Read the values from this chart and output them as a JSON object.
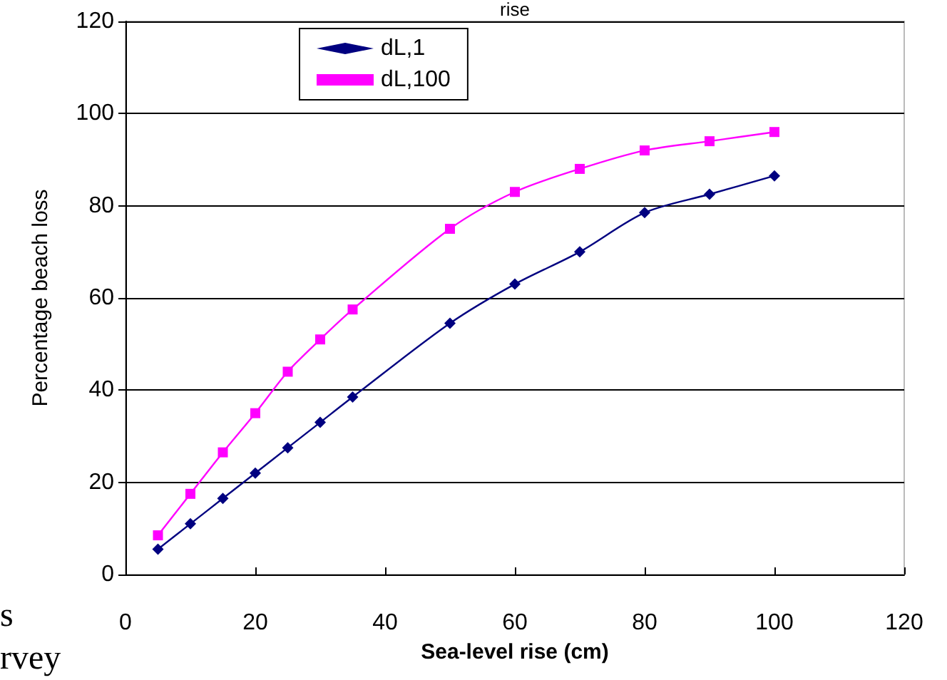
{
  "chart_data": {
    "type": "line",
    "title": "rise",
    "xlabel": "Sea-level rise (cm)",
    "ylabel": "Percentage beach loss",
    "annotations": [
      "s",
      "rvey"
    ],
    "x": [
      5,
      10,
      15,
      20,
      25,
      30,
      35,
      50,
      60,
      70,
      80,
      90,
      100
    ],
    "series": [
      {
        "name": "dL,1",
        "color": "#000080",
        "marker": "diamond",
        "values": [
          5.5,
          11,
          16.5,
          22,
          27.5,
          33,
          38.5,
          54.5,
          63,
          70,
          78.5,
          82.5,
          86.5
        ]
      },
      {
        "name": "dL,100",
        "color": "#ff00ff",
        "marker": "square",
        "values": [
          8.5,
          17.5,
          26.5,
          35,
          44,
          51,
          57.5,
          75,
          83,
          88,
          92,
          94,
          96
        ]
      }
    ],
    "xlim": [
      0,
      120
    ],
    "xticks": [
      0,
      20,
      40,
      60,
      80,
      100,
      120
    ],
    "ylim": [
      0,
      120
    ],
    "yticks": [
      0,
      20,
      40,
      60,
      80,
      100,
      120
    ],
    "grid": "y",
    "legend": "top"
  }
}
